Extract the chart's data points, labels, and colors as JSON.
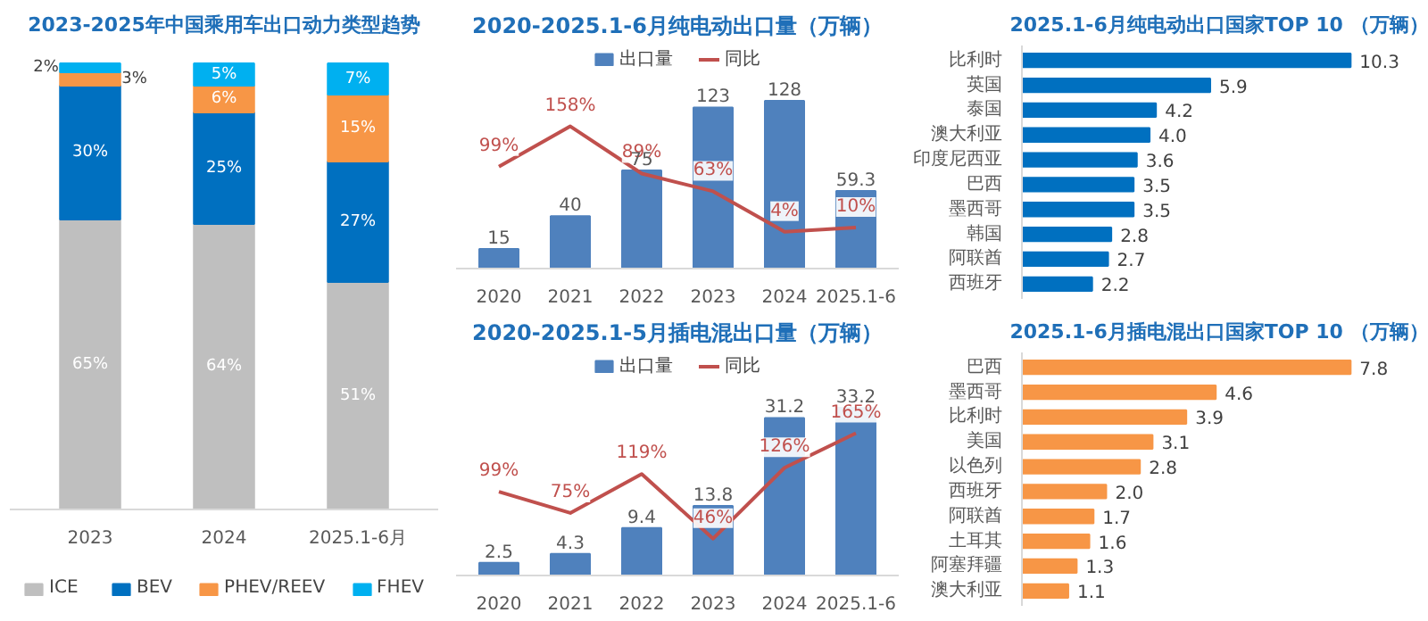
{
  "chart_data": [
    {
      "type": "bar",
      "title": "2023-2025年中国乘用车出口动力类型趋势",
      "stacked": true,
      "categories": [
        "2023",
        "2024",
        "2025.1-6月"
      ],
      "tick_labels": "x",
      "grid": false,
      "legend": "bottom",
      "series": [
        {
          "name": "ICE",
          "color": "#bfbfbf",
          "values": [
            65,
            64,
            51
          ],
          "value_labels": [
            "65%",
            "64%",
            "51%"
          ]
        },
        {
          "name": "BEV",
          "color": "#0070c0",
          "values": [
            30,
            25,
            27
          ],
          "value_labels": [
            "30%",
            "25%",
            "27%"
          ]
        },
        {
          "name": "PHEV/REEV",
          "color": "#f79646",
          "values": [
            3,
            6,
            15
          ],
          "value_labels": [
            "3%",
            "6%",
            "15%"
          ]
        },
        {
          "name": "FHEV",
          "color": "#00b0f0",
          "values": [
            2,
            5,
            7
          ],
          "value_labels": [
            "2%",
            "5%",
            "7%"
          ]
        }
      ]
    },
    {
      "type": "bar",
      "title": "2020-2025.1-6月纯电动出口量（万辆）",
      "categories": [
        "2020",
        "2021",
        "2022",
        "2023",
        "2024",
        "2025.1-6"
      ],
      "tick_labels": "x",
      "grid": false,
      "legend": "top",
      "series": [
        {
          "name": "出口量",
          "color": "#4f81bd",
          "values": [
            15,
            40,
            75,
            123,
            128,
            59.3
          ],
          "value_labels": [
            "15",
            "40",
            "75",
            "123",
            "128",
            "59.3"
          ]
        },
        {
          "name": "同比",
          "type": "line",
          "axis": "y2",
          "color": "#c0504d",
          "values": [
            99,
            158,
            89,
            63,
            4,
            10
          ],
          "value_labels": [
            "99%",
            "158%",
            "89%",
            "63%",
            "4%",
            "10%"
          ]
        }
      ]
    },
    {
      "type": "bar",
      "orientation": "horizontal",
      "title": "2025.1-6月纯电动出口国家TOP 10 （万辆）",
      "categories": [
        "比利时",
        "英国",
        "泰国",
        "澳大利亚",
        "印度尼西亚",
        "巴西",
        "墨西哥",
        "韩国",
        "阿联酋",
        "西班牙"
      ],
      "tick_labels": "y",
      "grid": false,
      "series": [
        {
          "color": "#0070c0",
          "values": [
            10.3,
            5.9,
            4.2,
            4.0,
            3.6,
            3.5,
            3.5,
            2.8,
            2.7,
            2.2
          ],
          "value_labels": [
            "10.3",
            "5.9",
            "4.2",
            "4.0",
            "3.6",
            "3.5",
            "3.5",
            "2.8",
            "2.7",
            "2.2"
          ]
        }
      ]
    },
    {
      "type": "bar",
      "title": "2020-2025.1-5月插电混出口量（万辆）",
      "categories": [
        "2020",
        "2021",
        "2022",
        "2023",
        "2024",
        "2025.1-6"
      ],
      "tick_labels": "x",
      "grid": false,
      "legend": "top",
      "series": [
        {
          "name": "出口量",
          "color": "#4f81bd",
          "values": [
            2.5,
            4.3,
            9.4,
            13.8,
            31.2,
            33.2
          ],
          "value_labels": [
            "2.5",
            "4.3",
            "9.4",
            "13.8",
            "31.2",
            "33.2"
          ]
        },
        {
          "name": "同比",
          "type": "line",
          "axis": "y2",
          "color": "#c0504d",
          "values": [
            99,
            75,
            119,
            46,
            126,
            165
          ],
          "value_labels": [
            "99%",
            "75%",
            "119%",
            "46%",
            "126%",
            "165%"
          ]
        }
      ]
    },
    {
      "type": "bar",
      "orientation": "horizontal",
      "title": "2025.1-6月插电混出口国家TOP 10 （万辆）",
      "categories": [
        "巴西",
        "墨西哥",
        "比利时",
        "美国",
        "以色列",
        "西班牙",
        "阿联酋",
        "土耳其",
        "阿塞拜疆",
        "澳大利亚"
      ],
      "tick_labels": "y",
      "grid": false,
      "series": [
        {
          "color": "#f79646",
          "values": [
            7.8,
            4.6,
            3.9,
            3.1,
            2.8,
            2.0,
            1.7,
            1.6,
            1.3,
            1.1
          ],
          "value_labels": [
            "7.8",
            "4.6",
            "3.9",
            "3.1",
            "2.8",
            "2.0",
            "1.7",
            "1.6",
            "1.3",
            "1.1"
          ]
        }
      ]
    }
  ]
}
